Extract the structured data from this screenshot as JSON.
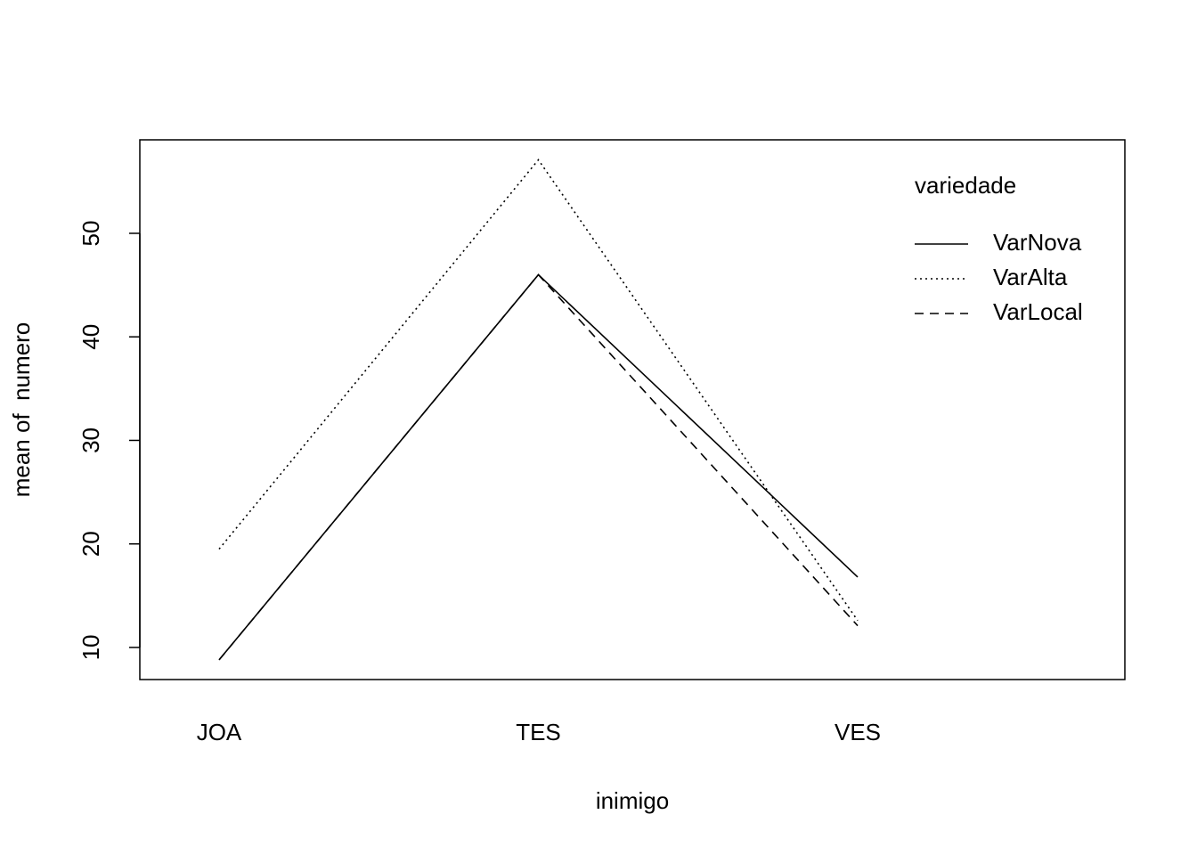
{
  "chart_data": {
    "type": "line",
    "x_label": "inimigo",
    "y_label": "mean of  numero",
    "categories": [
      "JOA",
      "TES",
      "VES"
    ],
    "series": [
      {
        "name": "VarNova",
        "color": "#000000",
        "dash": "solid",
        "values": [
          8.8,
          46.0,
          16.8
        ]
      },
      {
        "name": "VarAlta",
        "color": "#000000",
        "dash": "dotted",
        "values": [
          19.5,
          57.1,
          12.6
        ]
      },
      {
        "name": "VarLocal",
        "color": "#000000",
        "dash": "dashed",
        "values": [
          8.8,
          46.0,
          12.1
        ]
      }
    ],
    "legend_title": "variedade",
    "legend": "top-right",
    "ylim": [
      6.9,
      59.03
    ],
    "yticks": [
      10,
      20,
      30,
      40,
      50
    ]
  }
}
